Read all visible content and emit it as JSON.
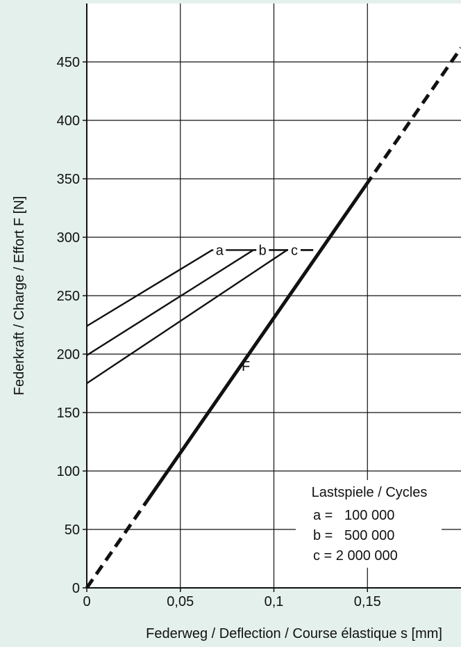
{
  "chart_data": {
    "type": "line",
    "xlabel": "Federweg / Deflection / Course élastique  s  [mm]",
    "ylabel": "Federkraft / Charge / Effort  F  [N]",
    "xlim": [
      0,
      0.2
    ],
    "ylim": [
      0,
      500
    ],
    "x_ticks": [
      0,
      0.05,
      0.1,
      0.15
    ],
    "x_tick_labels": [
      "0",
      "0,05",
      "0,1",
      "0,15"
    ],
    "y_ticks": [
      0,
      50,
      100,
      150,
      200,
      250,
      300,
      350,
      400,
      450
    ],
    "y_tick_labels": [
      "0",
      "50",
      "100",
      "150",
      "200",
      "250",
      "300",
      "350",
      "400",
      "450"
    ],
    "grid": true,
    "series": [
      {
        "name": "F",
        "points": [
          [
            0,
            0
          ],
          [
            0.2,
            462
          ]
        ],
        "solid_range": [
          0.032,
          0.149
        ],
        "dash_style": "dashed outside solid range"
      },
      {
        "name": "a",
        "points": [
          [
            0,
            224
          ],
          [
            0.067,
            289
          ],
          [
            0.121,
            289
          ]
        ]
      },
      {
        "name": "b",
        "points": [
          [
            0,
            199
          ],
          [
            0.089,
            289
          ],
          [
            0.121,
            289
          ]
        ]
      },
      {
        "name": "c",
        "points": [
          [
            0,
            175
          ],
          [
            0.107,
            289
          ],
          [
            0.121,
            289
          ]
        ]
      }
    ],
    "legend": {
      "title": "Lastspiele / Cycles",
      "entries": [
        "a =   100 000",
        "b =   500 000",
        "c = 2 000 000"
      ],
      "placement": "bottom-right"
    },
    "colors": {
      "background": "#e3f0ec",
      "plot": "#ffffff",
      "line": "#111111",
      "grid": "#111111"
    }
  }
}
